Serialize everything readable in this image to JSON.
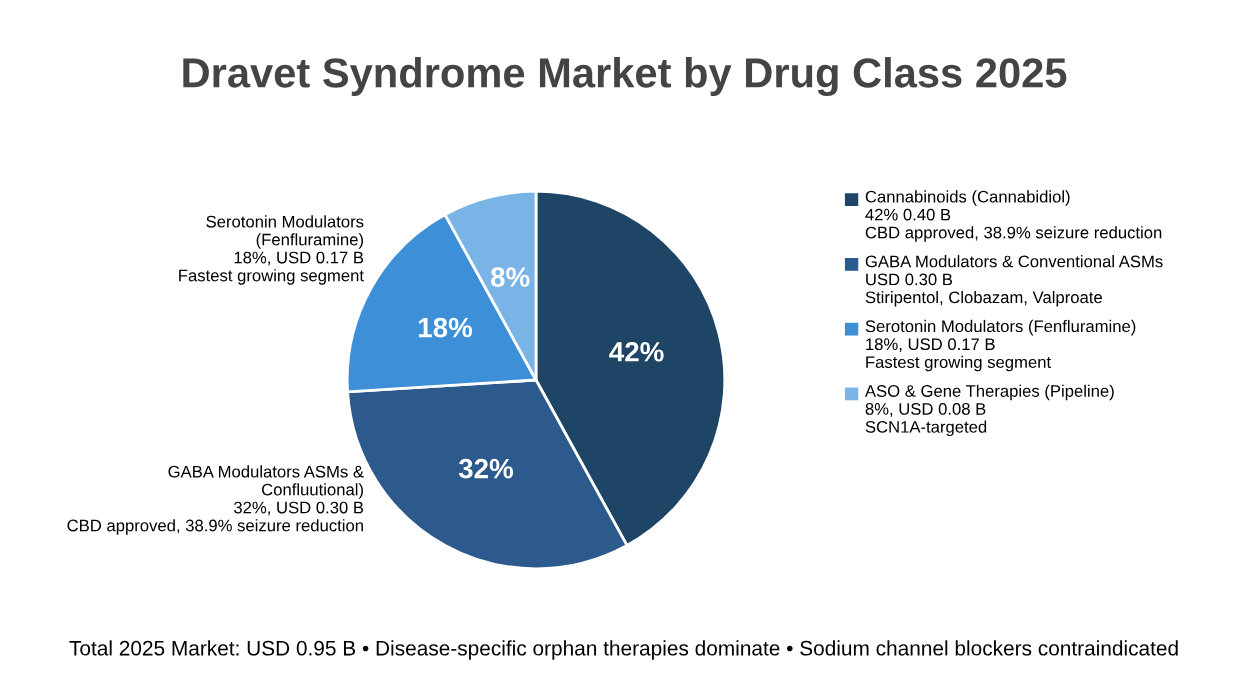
{
  "chart_data": {
    "type": "pie",
    "title": "Dravet Syndrome Market by Drug Class 2025",
    "categories": [
      "Cannabinoids (Cannabidiol)",
      "GABA Modulators & Conventional ASMs",
      "Serotonin Modulators (Fenfluramine)",
      "ASO & Gene Therapies (Pipeline)"
    ],
    "values": [
      42,
      32,
      18,
      8
    ],
    "colors": [
      "#1e4466",
      "#2d5a8c",
      "#3d8fd8",
      "#7ab4e6"
    ],
    "value_labels": [
      "42%",
      "32%",
      "18%",
      "8%"
    ],
    "legend": "right",
    "annotations": [
      "42% 0.40 B\nCBD approved, 38.9% seizure reduction",
      "USD 0.30 B\nStiripentol, Clobazam, Valproate",
      "18%, USD 0.17 B\nFastest growing segment",
      "8%, USD 0.08 B\nSCN1A-targeted",
      "Serotonin Modulators\n(Fenfluramine)\n18%, USD 0.17 B\nFastest growing segment",
      "GABA Modulators ASMs &\nConfluutional)\n32%, USD 0.30 B\nCBD approved, 38.9% seizure reduction",
      "Total 2025 Market: USD 0.95 B • Disease-specific orphan therapies dominate • Sodium channel blockers contraindicated"
    ]
  }
}
